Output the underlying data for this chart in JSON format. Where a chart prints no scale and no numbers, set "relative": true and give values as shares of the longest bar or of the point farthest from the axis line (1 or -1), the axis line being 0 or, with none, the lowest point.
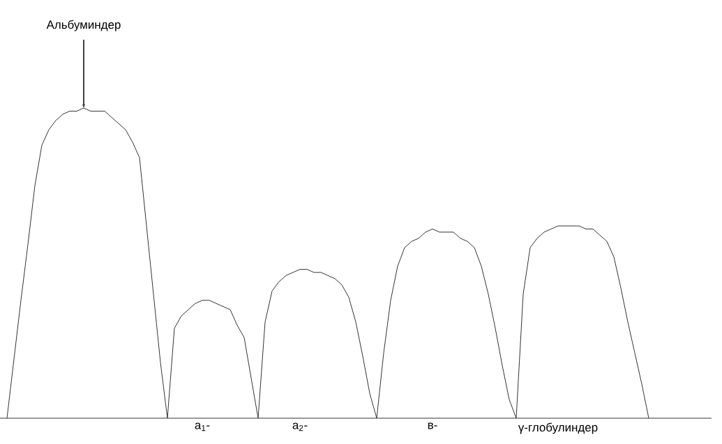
{
  "chart_data": {
    "type": "line",
    "relative": true,
    "color": "#333333",
    "categories": [
      null,
      null,
      null,
      null,
      null,
      null,
      null,
      null,
      null,
      null,
      null,
      null,
      null,
      null,
      null,
      null,
      null,
      null,
      null,
      null,
      null,
      null,
      null,
      null,
      null,
      null,
      null,
      null,
      null,
      null,
      null,
      null,
      null,
      null,
      null,
      null,
      null,
      null,
      null,
      null,
      null,
      null,
      null,
      null,
      null,
      null,
      null,
      null,
      null,
      null,
      null,
      null,
      null,
      null,
      null,
      null,
      null,
      null,
      null,
      null,
      null,
      null,
      null,
      null,
      null,
      null,
      null,
      null,
      null,
      null,
      null,
      null,
      null,
      null,
      null,
      null,
      null,
      null,
      null,
      null,
      null,
      null,
      null,
      null,
      null,
      null,
      null,
      null,
      null,
      null,
      null,
      null,
      null
    ],
    "values": [
      0,
      0.19,
      0.38,
      0.56,
      0.75,
      0.88,
      0.93,
      0.96,
      0.98,
      0.99,
      0.99,
      1,
      0.99,
      0.99,
      0.99,
      0.97,
      0.95,
      0.93,
      0.89,
      0.84,
      0.62,
      0.4,
      0.18,
      0,
      0.29,
      0.33,
      0.35,
      0.37,
      0.38,
      0.38,
      0.37,
      0.36,
      0.35,
      0.3,
      0.26,
      0.13,
      0,
      0.31,
      0.41,
      0.44,
      0.46,
      0.47,
      0.48,
      0.48,
      0.47,
      0.47,
      0.46,
      0.45,
      0.43,
      0.39,
      0.31,
      0.2,
      0.08,
      0,
      0.21,
      0.38,
      0.49,
      0.55,
      0.57,
      0.58,
      0.6,
      0.61,
      0.6,
      0.6,
      0.6,
      0.58,
      0.57,
      0.55,
      0.49,
      0.4,
      0.29,
      0.17,
      0.06,
      0,
      0.4,
      0.55,
      0.58,
      0.6,
      0.61,
      0.62,
      0.62,
      0.62,
      0.62,
      0.61,
      0.61,
      0.59,
      0.57,
      0.52,
      0.42,
      0.31,
      0.21,
      0.11,
      0
    ],
    "annotations": [
      "Альбуминдер",
      "a$_{1}$-",
      "a$_{2}$-",
      "в-",
      "γ-глобулиндер"
    ]
  }
}
